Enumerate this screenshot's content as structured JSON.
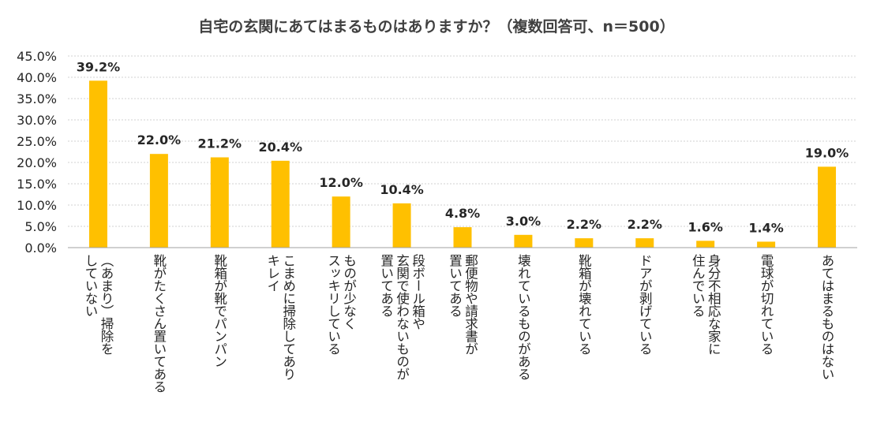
{
  "chart_data": {
    "type": "bar",
    "title": "自宅の玄関にあてはまるものはありますか？（複数回答可、n＝500）",
    "categories": [
      "（あまり）掃除をしていない",
      "靴がたくさん置いてある",
      "靴箱が靴でパンパン",
      "こまめに掃除してありキレイ",
      "ものが少なくスッキリしている",
      "段ボール箱や玄関で使わないものが置いてある",
      "郵便物や請求書が置いてある",
      "壊れているものがある",
      "靴箱が壊れている",
      "ドアが剥げている",
      "身分不相応な家に住んでいる",
      "電球が切れている",
      "あてはまるものはない"
    ],
    "category_lines": [
      [
        "（あまり）掃除を",
        "していない"
      ],
      [
        "靴がたくさん置いてある"
      ],
      [
        "靴箱が靴でパンパン"
      ],
      [
        "こまめに掃除してあり",
        "キレイ"
      ],
      [
        "ものが少なく",
        "スッキリしている"
      ],
      [
        "段ボール箱や",
        "玄関で使わないものが",
        "置いてある"
      ],
      [
        "郵便物や請求書が",
        "置いてある"
      ],
      [
        "壊れているものがある"
      ],
      [
        "靴箱が壊れている"
      ],
      [
        "ドアが剥げている"
      ],
      [
        "身分不相応な家に",
        "住んでいる"
      ],
      [
        "電球が切れている"
      ],
      [
        "あてはまるものはない"
      ]
    ],
    "values": [
      39.2,
      22.0,
      21.2,
      20.4,
      12.0,
      10.4,
      4.8,
      3.0,
      2.2,
      2.2,
      1.6,
      1.4,
      19.0
    ],
    "value_labels": [
      "39.2%",
      "22.0%",
      "21.2%",
      "20.4%",
      "12.0%",
      "10.4%",
      "4.8%",
      "3.0%",
      "2.2%",
      "2.2%",
      "1.6%",
      "1.4%",
      "19.0%"
    ],
    "yticks": [
      0,
      5,
      10,
      15,
      20,
      25,
      30,
      35,
      40,
      45
    ],
    "ytick_labels": [
      "0.0%",
      "5.0%",
      "10.0%",
      "15.0%",
      "20.0%",
      "25.0%",
      "30.0%",
      "35.0%",
      "40.0%",
      "45.0%"
    ],
    "ylim": [
      0,
      45
    ],
    "grid": true,
    "legend": "none",
    "bar_color": "#FFC000"
  }
}
